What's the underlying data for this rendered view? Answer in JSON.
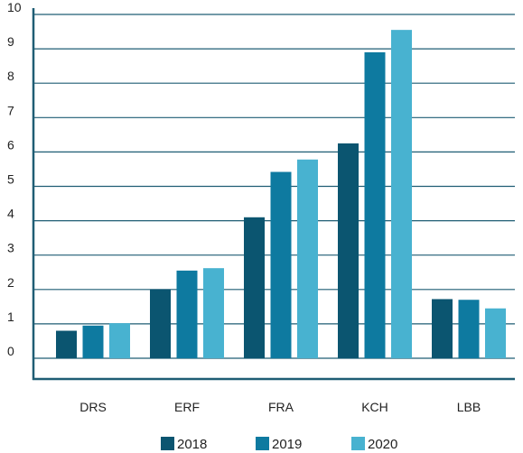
{
  "chart_data": {
    "type": "bar",
    "categories": [
      "DRS",
      "ERF",
      "FRA",
      "KCH",
      "LBB"
    ],
    "series": [
      {
        "name": "2018",
        "values": [
          0.8,
          2.0,
          4.1,
          6.25,
          1.72
        ]
      },
      {
        "name": "2019",
        "values": [
          0.95,
          2.55,
          5.42,
          8.9,
          1.7
        ]
      },
      {
        "name": "2020",
        "values": [
          1.02,
          2.62,
          5.78,
          9.55,
          1.45
        ]
      }
    ],
    "yticks": [
      0,
      1,
      2,
      3,
      4,
      5,
      6,
      7,
      8,
      9,
      10
    ],
    "ylim": [
      0,
      10
    ],
    "grid": true,
    "legend_position": "bottom",
    "colors": [
      "#0b5570",
      "#0e7aa0",
      "#48b2d0"
    ],
    "axis_color": "#1f5d74",
    "grid_color": "#1f5d74"
  }
}
